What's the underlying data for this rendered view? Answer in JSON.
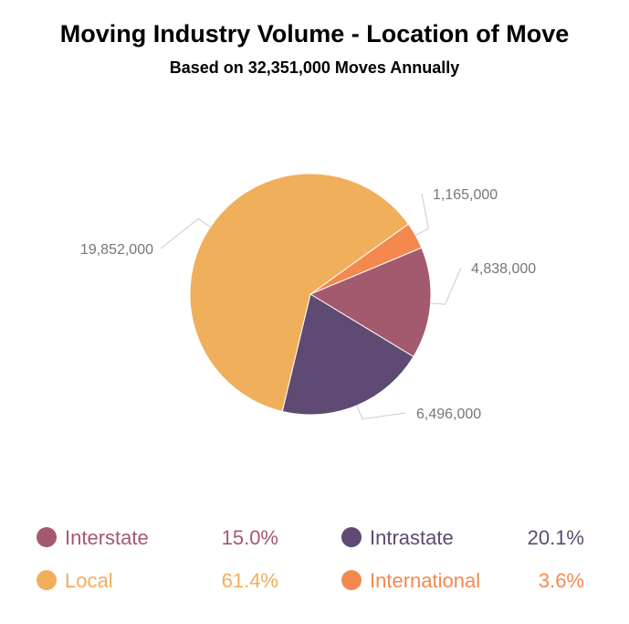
{
  "chart_data": {
    "type": "pie",
    "title": "Moving Industry Volume - Location of Move",
    "subtitle": "Based on 32,351,000 Moves Annually",
    "slices": [
      {
        "name": "International",
        "value": 1165000,
        "label": "1,165,000",
        "percent": "3.6%",
        "color": "#F4894F"
      },
      {
        "name": "Interstate",
        "value": 4838000,
        "label": "4,838,000",
        "percent": "15.0%",
        "color": "#A35A6E"
      },
      {
        "name": "Intrastate",
        "value": 6496000,
        "label": "6,496,000",
        "percent": "20.1%",
        "color": "#5E4A72"
      },
      {
        "name": "Local",
        "value": 19852000,
        "label": "19,852,000",
        "percent": "61.4%",
        "color": "#F0AF5A"
      }
    ],
    "legend": {
      "position": "bottom",
      "order": [
        "Interstate",
        "Intrastate",
        "Local",
        "International"
      ]
    }
  }
}
